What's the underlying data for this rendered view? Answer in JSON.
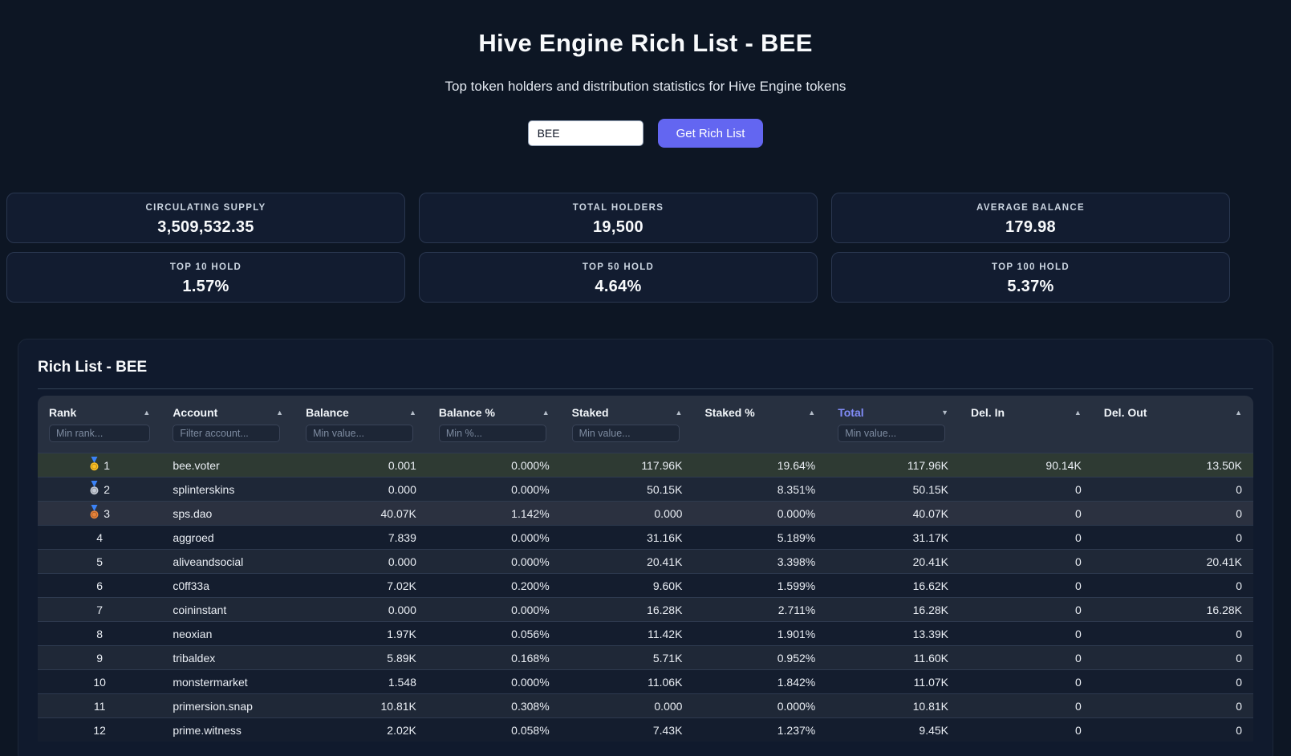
{
  "page": {
    "title": "Hive Engine Rich List - BEE",
    "subtitle": "Top token holders and distribution statistics for Hive Engine tokens"
  },
  "search": {
    "input_value": "BEE",
    "button_label": "Get Rich List"
  },
  "stats": [
    {
      "label": "CIRCULATING SUPPLY",
      "value": "3,509,532.35"
    },
    {
      "label": "TOTAL HOLDERS",
      "value": "19,500"
    },
    {
      "label": "AVERAGE BALANCE",
      "value": "179.98"
    },
    {
      "label": "TOP 10 HOLD",
      "value": "1.57%"
    },
    {
      "label": "TOP 50 HOLD",
      "value": "4.64%"
    },
    {
      "label": "TOP 100 HOLD",
      "value": "5.37%"
    }
  ],
  "icons": {
    "sort_asc": "▲",
    "sort_desc": "▼"
  },
  "colors": {
    "accent_button": "#6366f1",
    "sort_active": "#818cf8",
    "highlight_row": "#2e3a33",
    "medal_gold": "#fbbf24",
    "medal_silver": "#c3c9d4",
    "medal_bronze": "#e8833a",
    "ribbon": "#3b82f6"
  },
  "table": {
    "section_title": "Rich List - BEE",
    "columns": [
      {
        "label": "Rank",
        "sort": "asc",
        "active": false,
        "filter_placeholder": "Min rank..."
      },
      {
        "label": "Account",
        "sort": "asc",
        "active": false,
        "filter_placeholder": "Filter account..."
      },
      {
        "label": "Balance",
        "sort": "asc",
        "active": false,
        "filter_placeholder": "Min value..."
      },
      {
        "label": "Balance %",
        "sort": "asc",
        "active": false,
        "filter_placeholder": "Min %..."
      },
      {
        "label": "Staked",
        "sort": "asc",
        "active": false,
        "filter_placeholder": "Min value..."
      },
      {
        "label": "Staked %",
        "sort": "asc",
        "active": false,
        "filter_placeholder": null
      },
      {
        "label": "Total",
        "sort": "desc",
        "active": true,
        "filter_placeholder": "Min value..."
      },
      {
        "label": "Del. In",
        "sort": "asc",
        "active": false,
        "filter_placeholder": null
      },
      {
        "label": "Del. Out",
        "sort": "asc",
        "active": false,
        "filter_placeholder": null
      }
    ],
    "rows": [
      {
        "rank": "1",
        "medal": "gold",
        "account": "bee.voter",
        "balance": "0.001",
        "balance_pct": "0.000%",
        "staked": "117.96K",
        "staked_pct": "19.64%",
        "total": "117.96K",
        "del_in": "90.14K",
        "del_out": "13.50K"
      },
      {
        "rank": "2",
        "medal": "silver",
        "account": "splinterskins",
        "balance": "0.000",
        "balance_pct": "0.000%",
        "staked": "50.15K",
        "staked_pct": "8.351%",
        "total": "50.15K",
        "del_in": "0",
        "del_out": "0"
      },
      {
        "rank": "3",
        "medal": "bronze",
        "account": "sps.dao",
        "balance": "40.07K",
        "balance_pct": "1.142%",
        "staked": "0.000",
        "staked_pct": "0.000%",
        "total": "40.07K",
        "del_in": "0",
        "del_out": "0"
      },
      {
        "rank": "4",
        "medal": null,
        "account": "aggroed",
        "balance": "7.839",
        "balance_pct": "0.000%",
        "staked": "31.16K",
        "staked_pct": "5.189%",
        "total": "31.17K",
        "del_in": "0",
        "del_out": "0"
      },
      {
        "rank": "5",
        "medal": null,
        "account": "aliveandsocial",
        "balance": "0.000",
        "balance_pct": "0.000%",
        "staked": "20.41K",
        "staked_pct": "3.398%",
        "total": "20.41K",
        "del_in": "0",
        "del_out": "20.41K"
      },
      {
        "rank": "6",
        "medal": null,
        "account": "c0ff33a",
        "balance": "7.02K",
        "balance_pct": "0.200%",
        "staked": "9.60K",
        "staked_pct": "1.599%",
        "total": "16.62K",
        "del_in": "0",
        "del_out": "0"
      },
      {
        "rank": "7",
        "medal": null,
        "account": "coininstant",
        "balance": "0.000",
        "balance_pct": "0.000%",
        "staked": "16.28K",
        "staked_pct": "2.711%",
        "total": "16.28K",
        "del_in": "0",
        "del_out": "16.28K"
      },
      {
        "rank": "8",
        "medal": null,
        "account": "neoxian",
        "balance": "1.97K",
        "balance_pct": "0.056%",
        "staked": "11.42K",
        "staked_pct": "1.901%",
        "total": "13.39K",
        "del_in": "0",
        "del_out": "0"
      },
      {
        "rank": "9",
        "medal": null,
        "account": "tribaldex",
        "balance": "5.89K",
        "balance_pct": "0.168%",
        "staked": "5.71K",
        "staked_pct": "0.952%",
        "total": "11.60K",
        "del_in": "0",
        "del_out": "0"
      },
      {
        "rank": "10",
        "medal": null,
        "account": "monstermarket",
        "balance": "1.548",
        "balance_pct": "0.000%",
        "staked": "11.06K",
        "staked_pct": "1.842%",
        "total": "11.07K",
        "del_in": "0",
        "del_out": "0"
      },
      {
        "rank": "11",
        "medal": null,
        "account": "primersion.snap",
        "balance": "10.81K",
        "balance_pct": "0.308%",
        "staked": "0.000",
        "staked_pct": "0.000%",
        "total": "10.81K",
        "del_in": "0",
        "del_out": "0"
      },
      {
        "rank": "12",
        "medal": null,
        "account": "prime.witness",
        "balance": "2.02K",
        "balance_pct": "0.058%",
        "staked": "7.43K",
        "staked_pct": "1.237%",
        "total": "9.45K",
        "del_in": "0",
        "del_out": "0"
      }
    ]
  }
}
